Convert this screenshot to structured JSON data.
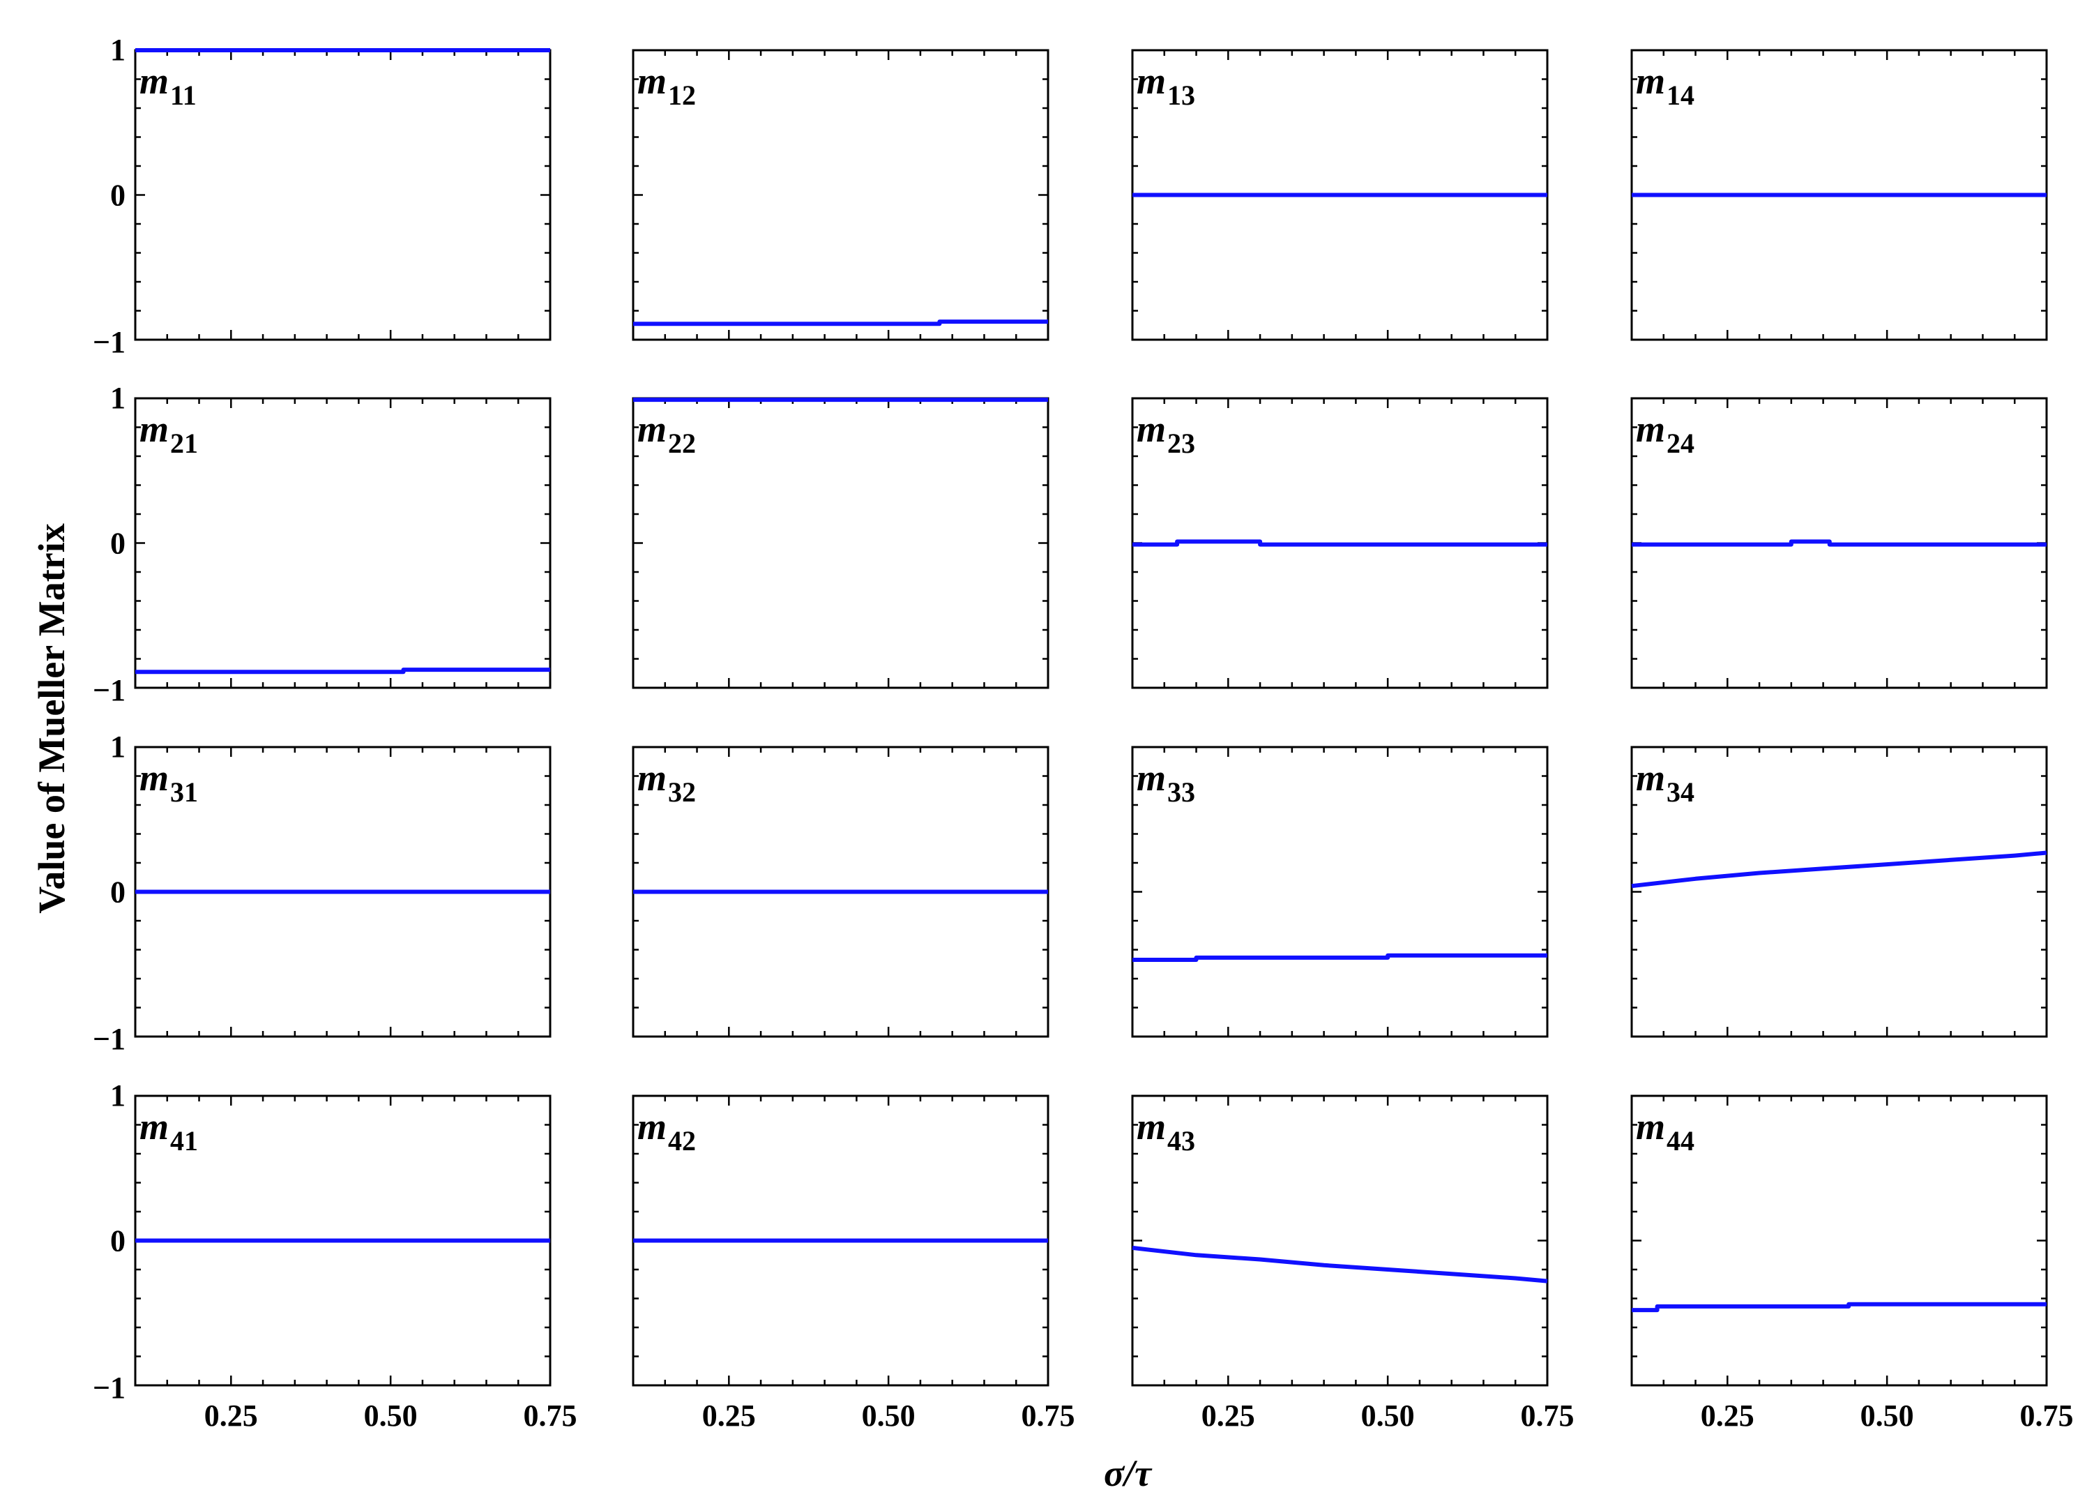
{
  "chart_data": {
    "type": "line",
    "ylabel": "Value of Mueller Matrix",
    "xlabel": "σ/τ",
    "xlim": [
      0.1,
      0.75
    ],
    "ylim": [
      -1,
      1
    ],
    "x_ticks": [
      0.25,
      0.5,
      0.75
    ],
    "x_tick_labels": [
      "0.25",
      "0.50",
      "0.75"
    ],
    "y_ticks": [
      -1,
      0,
      1
    ],
    "y_tick_labels": [
      "−1",
      "0",
      "1"
    ],
    "line_color": "#1010ff",
    "grid": false,
    "panels": [
      {
        "label": "m",
        "sub": "11",
        "x": [
          0.1,
          0.75
        ],
        "y": [
          1.0,
          1.0
        ]
      },
      {
        "label": "m",
        "sub": "12",
        "x": [
          0.1,
          0.58,
          0.58,
          0.75
        ],
        "y": [
          -0.89,
          -0.89,
          -0.875,
          -0.875
        ]
      },
      {
        "label": "m",
        "sub": "13",
        "x": [
          0.1,
          0.75
        ],
        "y": [
          0.0,
          0.0
        ]
      },
      {
        "label": "m",
        "sub": "14",
        "x": [
          0.1,
          0.75
        ],
        "y": [
          0.0,
          0.0
        ]
      },
      {
        "label": "m",
        "sub": "21",
        "x": [
          0.1,
          0.52,
          0.52,
          0.75
        ],
        "y": [
          -0.89,
          -0.89,
          -0.875,
          -0.875
        ]
      },
      {
        "label": "m",
        "sub": "22",
        "x": [
          0.1,
          0.75
        ],
        "y": [
          0.99,
          0.99
        ]
      },
      {
        "label": "m",
        "sub": "23",
        "x": [
          0.1,
          0.17,
          0.17,
          0.3,
          0.3,
          0.75
        ],
        "y": [
          -0.01,
          -0.01,
          0.01,
          0.01,
          -0.01,
          -0.01
        ]
      },
      {
        "label": "m",
        "sub": "24",
        "x": [
          0.1,
          0.35,
          0.35,
          0.41,
          0.41,
          0.75
        ],
        "y": [
          -0.01,
          -0.01,
          0.01,
          0.01,
          -0.01,
          -0.01
        ]
      },
      {
        "label": "m",
        "sub": "31",
        "x": [
          0.1,
          0.75
        ],
        "y": [
          0.0,
          0.0
        ]
      },
      {
        "label": "m",
        "sub": "32",
        "x": [
          0.1,
          0.75
        ],
        "y": [
          0.0,
          0.0
        ]
      },
      {
        "label": "m",
        "sub": "33",
        "x": [
          0.1,
          0.2,
          0.2,
          0.5,
          0.5,
          0.75
        ],
        "y": [
          -0.47,
          -0.47,
          -0.455,
          -0.455,
          -0.44,
          -0.44
        ]
      },
      {
        "label": "m",
        "sub": "34",
        "x": [
          0.1,
          0.2,
          0.3,
          0.4,
          0.5,
          0.6,
          0.7,
          0.75
        ],
        "y": [
          0.04,
          0.09,
          0.13,
          0.16,
          0.19,
          0.22,
          0.25,
          0.27
        ]
      },
      {
        "label": "m",
        "sub": "41",
        "x": [
          0.1,
          0.75
        ],
        "y": [
          0.0,
          0.0
        ]
      },
      {
        "label": "m",
        "sub": "42",
        "x": [
          0.1,
          0.75
        ],
        "y": [
          0.0,
          0.0
        ]
      },
      {
        "label": "m",
        "sub": "43",
        "x": [
          0.1,
          0.2,
          0.3,
          0.4,
          0.5,
          0.6,
          0.7,
          0.75
        ],
        "y": [
          -0.05,
          -0.1,
          -0.13,
          -0.17,
          -0.2,
          -0.23,
          -0.26,
          -0.28
        ]
      },
      {
        "label": "m",
        "sub": "44",
        "x": [
          0.1,
          0.14,
          0.14,
          0.44,
          0.44,
          0.75
        ],
        "y": [
          -0.48,
          -0.48,
          -0.455,
          -0.455,
          -0.44,
          -0.44
        ]
      }
    ]
  }
}
